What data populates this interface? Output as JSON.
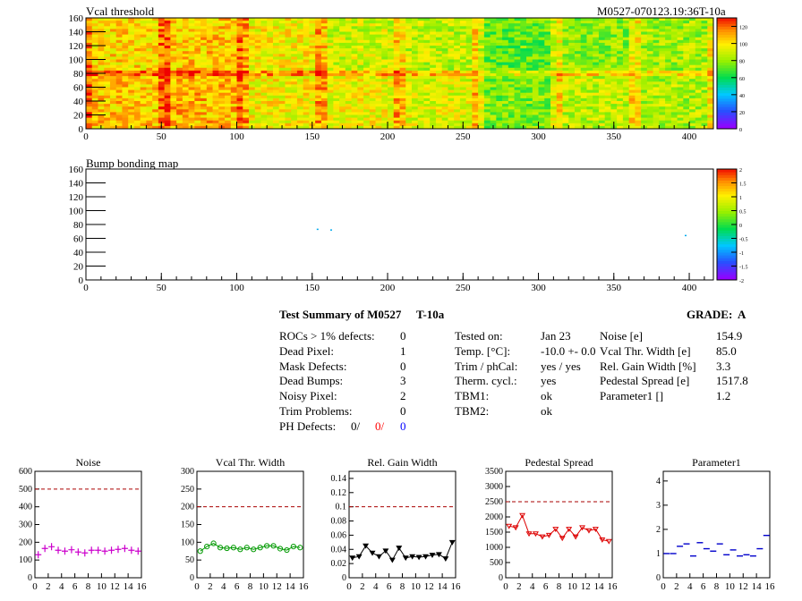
{
  "header": {
    "title": "Vcal threshold",
    "run_label": "M0527-070123.19:36T-10a"
  },
  "maps": [
    {
      "id": "vcal",
      "title": "Vcal threshold",
      "xlim": [
        0,
        416
      ],
      "ylim": [
        0,
        160
      ],
      "x_ticks": [
        "0",
        "50",
        "100",
        "150",
        "200",
        "250",
        "300",
        "350",
        "400"
      ],
      "y_ticks": [
        "0",
        "20",
        "40",
        "60",
        "80",
        "100",
        "120",
        "140",
        "160"
      ],
      "colorbar": {
        "min": 0,
        "max": 130,
        "ticks": [
          "0",
          "20",
          "40",
          "60",
          "80",
          "100",
          "120"
        ]
      }
    },
    {
      "id": "bump",
      "title": "Bump bonding map",
      "xlim": [
        0,
        416
      ],
      "ylim": [
        0,
        160
      ],
      "x_ticks": [
        "0",
        "50",
        "100",
        "150",
        "200",
        "250",
        "300",
        "350",
        "400"
      ],
      "y_ticks": [
        "0",
        "20",
        "40",
        "60",
        "80",
        "100",
        "120",
        "140",
        "160"
      ],
      "colorbar": {
        "min": -2,
        "max": 2,
        "ticks": [
          "-2",
          "-1.5",
          "-1",
          "-0.5",
          "0",
          "0.5",
          "1",
          "1.5",
          "2"
        ]
      },
      "points": [
        {
          "x": 153,
          "y": 74
        },
        {
          "x": 162,
          "y": 73
        },
        {
          "x": 397,
          "y": 65
        }
      ]
    }
  ],
  "summary": {
    "title": "Test Summary of M0527",
    "temp_tag": "T-10a",
    "grade_label": "GRADE:",
    "grade": "A",
    "defects": [
      {
        "label": "ROCs > 1% defects:",
        "value": "0"
      },
      {
        "label": "Dead Pixel:",
        "value": "1"
      },
      {
        "label": "Mask Defects:",
        "value": "0"
      },
      {
        "label": "Dead Bumps:",
        "value": "3"
      },
      {
        "label": "Noisy Pixel:",
        "value": "2"
      },
      {
        "label": "Trim Problems:",
        "value": "0"
      }
    ],
    "ph_defects": {
      "label": "PH Defects:",
      "v1": "0/",
      "v2": "0/",
      "v3": "0",
      "v2_color": "#ff0000",
      "v3_color": "#0000ff"
    },
    "conditions": [
      {
        "label": "Tested on:",
        "value": "Jan 23"
      },
      {
        "label": "Temp. [°C]:",
        "value": "-10.0 +- 0.0"
      },
      {
        "label": "Trim / phCal:",
        "value": "yes / yes"
      },
      {
        "label": "Therm. cycl.:",
        "value": "yes"
      },
      {
        "label": "TBM1:",
        "value": "ok"
      },
      {
        "label": "TBM2:",
        "value": "ok"
      }
    ],
    "results": [
      {
        "label": "Noise [e]",
        "value": "154.9"
      },
      {
        "label": "Vcal Thr. Width [e]",
        "value": "85.0"
      },
      {
        "label": "Rel. Gain Width [%]",
        "value": "3.3"
      },
      {
        "label": "Pedestal Spread [e]",
        "value": "1517.8"
      },
      {
        "label": "Parameter1 []",
        "value": "1.2"
      }
    ]
  },
  "chart_data": [
    {
      "type": "scatter",
      "title": "Noise",
      "color": "#cc00cc",
      "marker": "cross",
      "x": [
        0,
        1,
        2,
        3,
        4,
        5,
        6,
        7,
        8,
        9,
        10,
        11,
        12,
        13,
        14,
        15
      ],
      "values": [
        130,
        165,
        175,
        155,
        150,
        158,
        145,
        140,
        155,
        155,
        150,
        155,
        160,
        165,
        155,
        150
      ],
      "xlim": [
        0,
        16
      ],
      "ylim": [
        0,
        600
      ],
      "ref": 500,
      "x_ticks": [
        "0",
        "2",
        "4",
        "6",
        "8",
        "10",
        "12",
        "14",
        "16"
      ],
      "y_ticks": [
        "0",
        "100",
        "200",
        "300",
        "400",
        "500",
        "600"
      ]
    },
    {
      "type": "line",
      "title": "Vcal Thr. Width",
      "color": "#009900",
      "marker": "circle",
      "x": [
        0,
        1,
        2,
        3,
        4,
        5,
        6,
        7,
        8,
        9,
        10,
        11,
        12,
        13,
        14,
        15
      ],
      "values": [
        75,
        88,
        97,
        85,
        83,
        85,
        80,
        85,
        80,
        85,
        90,
        90,
        82,
        78,
        88,
        85
      ],
      "xlim": [
        0,
        16
      ],
      "ylim": [
        0,
        300
      ],
      "ref": 200,
      "x_ticks": [
        "0",
        "2",
        "4",
        "6",
        "8",
        "10",
        "12",
        "14",
        "16"
      ],
      "y_ticks": [
        "0",
        "50",
        "100",
        "150",
        "200",
        "250",
        "300"
      ]
    },
    {
      "type": "line",
      "title": "Rel. Gain Width",
      "color": "#000000",
      "marker": "triangle",
      "x": [
        0,
        1,
        2,
        3,
        4,
        5,
        6,
        7,
        8,
        9,
        10,
        11,
        12,
        13,
        14,
        15
      ],
      "values": [
        0.028,
        0.03,
        0.045,
        0.035,
        0.03,
        0.038,
        0.025,
        0.042,
        0.028,
        0.03,
        0.029,
        0.03,
        0.032,
        0.033,
        0.027,
        0.05
      ],
      "xlim": [
        0,
        16
      ],
      "ylim": [
        0,
        0.15
      ],
      "ref": 0.1,
      "x_ticks": [
        "0",
        "2",
        "4",
        "6",
        "8",
        "10",
        "12",
        "14",
        "16"
      ],
      "y_ticks": [
        "0",
        "0.02",
        "0.04",
        "0.06",
        "0.08",
        "0.1",
        "0.12",
        "0.14"
      ]
    },
    {
      "type": "line",
      "title": "Pedestal Spread",
      "color": "#dd0000",
      "marker": "triangle",
      "x": [
        0,
        1,
        2,
        3,
        4,
        5,
        6,
        7,
        8,
        9,
        10,
        11,
        12,
        13,
        14,
        15
      ],
      "values": [
        1700,
        1650,
        2050,
        1450,
        1450,
        1350,
        1400,
        1600,
        1300,
        1600,
        1350,
        1650,
        1550,
        1600,
        1250,
        1200
      ],
      "xlim": [
        0,
        16
      ],
      "ylim": [
        0,
        3500
      ],
      "ref": 2500,
      "x_ticks": [
        "0",
        "2",
        "4",
        "6",
        "8",
        "10",
        "12",
        "14",
        "16"
      ],
      "y_ticks": [
        "0",
        "500",
        "1000",
        "1500",
        "2000",
        "2500",
        "3000",
        "3500"
      ]
    },
    {
      "type": "scatter",
      "title": "Parameter1",
      "color": "#0000cc",
      "marker": "dash",
      "x": [
        0,
        1,
        2,
        3,
        4,
        5,
        6,
        7,
        8,
        9,
        10,
        11,
        12,
        13,
        14,
        15
      ],
      "values": [
        1.0,
        1.0,
        1.3,
        1.4,
        0.9,
        1.45,
        1.2,
        1.1,
        1.4,
        0.95,
        1.15,
        0.9,
        0.95,
        0.9,
        1.2,
        1.75
      ],
      "xlim": [
        0,
        16
      ],
      "ylim": [
        0,
        4.4
      ],
      "ref": null,
      "x_ticks": [
        "0",
        "2",
        "4",
        "6",
        "8",
        "10",
        "12",
        "14",
        "16"
      ],
      "y_ticks": [
        "0",
        "1",
        "2",
        "3",
        "4"
      ]
    }
  ]
}
